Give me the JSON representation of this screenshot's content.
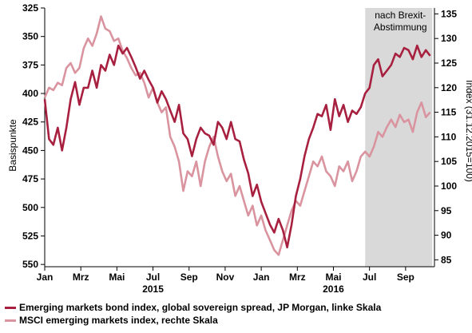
{
  "chart_data": {
    "type": "line",
    "title": "",
    "shaded_region": {
      "label_line1": "nach Brexit-",
      "label_line2": "Abstimmung",
      "x_start": 2016.48,
      "x_end": 2016.79,
      "color": "#d9d9d9"
    },
    "left_axis": {
      "label": "Basispunkte",
      "reversed": true,
      "ylim": [
        325,
        552
      ],
      "ticks": [
        "325",
        "350",
        "375",
        "400",
        "425",
        "450",
        "475",
        "500",
        "525",
        "550"
      ]
    },
    "right_axis": {
      "label": "Index (31.12.2015=100)",
      "ylim": [
        83.6,
        136.2
      ],
      "ticks": [
        "135",
        "130",
        "125",
        "120",
        "115",
        "110",
        "105",
        "100",
        "95",
        "90",
        "85"
      ]
    },
    "x_axis": {
      "xlim": [
        2015.0,
        2016.8
      ],
      "tick_labels": [
        "Jan",
        "Mrz",
        "Mai",
        "Jul",
        "Sep",
        "Nov",
        "Jan",
        "Mrz",
        "Mai",
        "Jul",
        "Sep"
      ],
      "tick_positions": [
        2015.0,
        2015.1667,
        2015.3333,
        2015.5,
        2015.6667,
        2015.8333,
        2016.0,
        2016.1667,
        2016.3333,
        2016.5,
        2016.6667
      ],
      "year_labels": [
        "2015",
        "2016"
      ],
      "year_positions": [
        2015.5,
        2016.3333
      ]
    },
    "series": [
      {
        "name": "Emerging markets bond index, global sovereign spread, JP Morgan, linke Skala",
        "axis": "left",
        "color": "#a8203f",
        "points": [
          [
            2015.0,
            405
          ],
          [
            2015.02,
            440
          ],
          [
            2015.04,
            445
          ],
          [
            2015.06,
            430
          ],
          [
            2015.08,
            450
          ],
          [
            2015.1,
            430
          ],
          [
            2015.12,
            405
          ],
          [
            2015.14,
            390
          ],
          [
            2015.16,
            410
          ],
          [
            2015.18,
            395
          ],
          [
            2015.2,
            395
          ],
          [
            2015.22,
            380
          ],
          [
            2015.24,
            395
          ],
          [
            2015.26,
            375
          ],
          [
            2015.28,
            380
          ],
          [
            2015.3,
            366
          ],
          [
            2015.32,
            375
          ],
          [
            2015.34,
            358
          ],
          [
            2015.36,
            365
          ],
          [
            2015.38,
            360
          ],
          [
            2015.4,
            368
          ],
          [
            2015.42,
            377
          ],
          [
            2015.44,
            387
          ],
          [
            2015.46,
            380
          ],
          [
            2015.48,
            388
          ],
          [
            2015.5,
            395
          ],
          [
            2015.52,
            408
          ],
          [
            2015.54,
            398
          ],
          [
            2015.56,
            405
          ],
          [
            2015.58,
            415
          ],
          [
            2015.6,
            425
          ],
          [
            2015.62,
            410
          ],
          [
            2015.64,
            435
          ],
          [
            2015.66,
            440
          ],
          [
            2015.68,
            455
          ],
          [
            2015.7,
            440
          ],
          [
            2015.72,
            430
          ],
          [
            2015.74,
            435
          ],
          [
            2015.76,
            437
          ],
          [
            2015.78,
            445
          ],
          [
            2015.8,
            425
          ],
          [
            2015.82,
            430
          ],
          [
            2015.84,
            440
          ],
          [
            2015.86,
            425
          ],
          [
            2015.88,
            440
          ],
          [
            2015.9,
            442
          ],
          [
            2015.92,
            458
          ],
          [
            2015.94,
            470
          ],
          [
            2015.96,
            490
          ],
          [
            2015.98,
            480
          ],
          [
            2016.0,
            495
          ],
          [
            2016.02,
            505
          ],
          [
            2016.04,
            515
          ],
          [
            2016.06,
            522
          ],
          [
            2016.08,
            510
          ],
          [
            2016.1,
            520
          ],
          [
            2016.12,
            535
          ],
          [
            2016.14,
            515
          ],
          [
            2016.16,
            490
          ],
          [
            2016.18,
            475
          ],
          [
            2016.2,
            455
          ],
          [
            2016.22,
            440
          ],
          [
            2016.24,
            430
          ],
          [
            2016.26,
            418
          ],
          [
            2016.28,
            420
          ],
          [
            2016.3,
            410
          ],
          [
            2016.32,
            432
          ],
          [
            2016.34,
            405
          ],
          [
            2016.36,
            420
          ],
          [
            2016.38,
            410
          ],
          [
            2016.4,
            425
          ],
          [
            2016.42,
            415
          ],
          [
            2016.44,
            418
          ],
          [
            2016.46,
            412
          ],
          [
            2016.48,
            400
          ],
          [
            2016.5,
            395
          ],
          [
            2016.52,
            375
          ],
          [
            2016.54,
            370
          ],
          [
            2016.56,
            385
          ],
          [
            2016.58,
            380
          ],
          [
            2016.6,
            375
          ],
          [
            2016.62,
            365
          ],
          [
            2016.64,
            368
          ],
          [
            2016.66,
            360
          ],
          [
            2016.68,
            362
          ],
          [
            2016.7,
            370
          ],
          [
            2016.72,
            358
          ],
          [
            2016.74,
            368
          ],
          [
            2016.76,
            362
          ],
          [
            2016.78,
            367
          ]
        ]
      },
      {
        "name": "MSCI emerging markets index, rechte Skala",
        "axis": "right",
        "color": "#d9949f",
        "points": [
          [
            2015.0,
            118
          ],
          [
            2015.02,
            120
          ],
          [
            2015.04,
            119.5
          ],
          [
            2015.06,
            121
          ],
          [
            2015.08,
            120.5
          ],
          [
            2015.1,
            124
          ],
          [
            2015.12,
            125
          ],
          [
            2015.14,
            123
          ],
          [
            2015.16,
            124
          ],
          [
            2015.18,
            128
          ],
          [
            2015.2,
            130
          ],
          [
            2015.22,
            128.5
          ],
          [
            2015.24,
            131
          ],
          [
            2015.26,
            134.5
          ],
          [
            2015.28,
            132
          ],
          [
            2015.3,
            131.5
          ],
          [
            2015.32,
            129.5
          ],
          [
            2015.34,
            130
          ],
          [
            2015.36,
            127.5
          ],
          [
            2015.38,
            126
          ],
          [
            2015.4,
            124
          ],
          [
            2015.42,
            122.5
          ],
          [
            2015.44,
            123
          ],
          [
            2015.46,
            121
          ],
          [
            2015.48,
            118
          ],
          [
            2015.5,
            120
          ],
          [
            2015.52,
            117
          ],
          [
            2015.54,
            115
          ],
          [
            2015.56,
            116
          ],
          [
            2015.58,
            110
          ],
          [
            2015.6,
            108
          ],
          [
            2015.62,
            105
          ],
          [
            2015.64,
            99
          ],
          [
            2015.66,
            103
          ],
          [
            2015.68,
            102
          ],
          [
            2015.7,
            105
          ],
          [
            2015.72,
            100
          ],
          [
            2015.74,
            105
          ],
          [
            2015.76,
            108
          ],
          [
            2015.78,
            110
          ],
          [
            2015.8,
            106
          ],
          [
            2015.82,
            103
          ],
          [
            2015.84,
            101
          ],
          [
            2015.86,
            102.5
          ],
          [
            2015.88,
            98
          ],
          [
            2015.9,
            100
          ],
          [
            2015.92,
            97
          ],
          [
            2015.94,
            94
          ],
          [
            2015.96,
            96
          ],
          [
            2015.98,
            92
          ],
          [
            2016.0,
            94
          ],
          [
            2016.02,
            91
          ],
          [
            2016.04,
            89
          ],
          [
            2016.06,
            87
          ],
          [
            2016.08,
            86
          ],
          [
            2016.1,
            89
          ],
          [
            2016.12,
            92
          ],
          [
            2016.14,
            95
          ],
          [
            2016.16,
            97
          ],
          [
            2016.18,
            96
          ],
          [
            2016.2,
            99
          ],
          [
            2016.22,
            102
          ],
          [
            2016.24,
            105
          ],
          [
            2016.26,
            104
          ],
          [
            2016.28,
            106
          ],
          [
            2016.3,
            103
          ],
          [
            2016.32,
            102
          ],
          [
            2016.34,
            100
          ],
          [
            2016.36,
            104
          ],
          [
            2016.38,
            103
          ],
          [
            2016.4,
            105
          ],
          [
            2016.42,
            101
          ],
          [
            2016.44,
            103
          ],
          [
            2016.46,
            106
          ],
          [
            2016.48,
            107
          ],
          [
            2016.5,
            106
          ],
          [
            2016.52,
            108
          ],
          [
            2016.54,
            111
          ],
          [
            2016.56,
            110
          ],
          [
            2016.58,
            112
          ],
          [
            2016.6,
            113.5
          ],
          [
            2016.62,
            112
          ],
          [
            2016.64,
            114.5
          ],
          [
            2016.66,
            113
          ],
          [
            2016.68,
            113.5
          ],
          [
            2016.7,
            111
          ],
          [
            2016.72,
            115
          ],
          [
            2016.74,
            117
          ],
          [
            2016.76,
            114
          ],
          [
            2016.78,
            115
          ]
        ]
      }
    ],
    "legend_position": "bottom-left"
  }
}
